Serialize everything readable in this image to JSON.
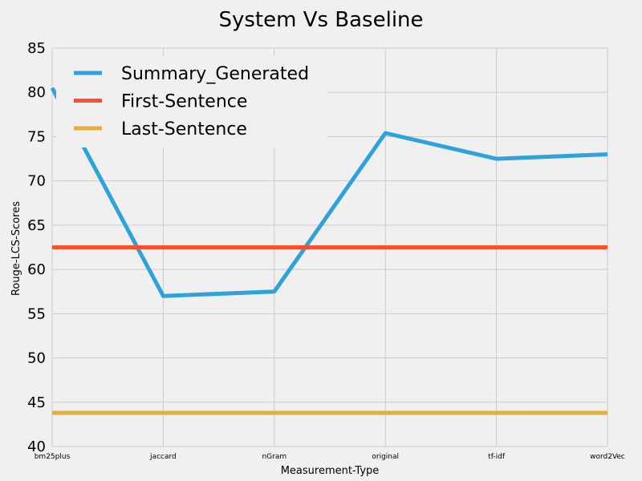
{
  "chart_data": {
    "type": "line",
    "title": "System Vs Baseline",
    "xlabel": "Measurement-Type",
    "ylabel": "Rouge-LCS-Scores",
    "categories": [
      "bm25plus",
      "jaccard",
      "nGram",
      "original",
      "tf-idf",
      "word2Vec"
    ],
    "ylim": [
      40,
      85
    ],
    "yticks": [
      40,
      45,
      50,
      55,
      60,
      65,
      70,
      75,
      80,
      85
    ],
    "grid": true,
    "legend_position": "top-left",
    "series": [
      {
        "name": "Summary_Generated",
        "color": "#30a2da",
        "values": [
          80.5,
          57.0,
          57.5,
          75.4,
          72.5,
          73.0
        ]
      },
      {
        "name": "First-Sentence",
        "color": "#fc4f30",
        "values": [
          62.5,
          62.5,
          62.5,
          62.5,
          62.5,
          62.5
        ]
      },
      {
        "name": "Last-Sentence",
        "color": "#e5ae38",
        "values": [
          43.8,
          43.8,
          43.8,
          43.8,
          43.8,
          43.8
        ]
      }
    ]
  }
}
